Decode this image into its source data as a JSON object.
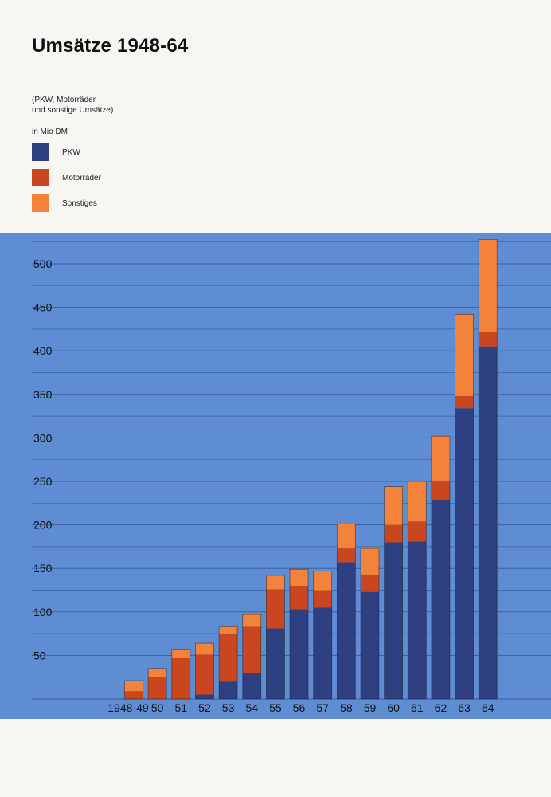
{
  "header": {
    "title": "Umsätze 1948-64",
    "subtitle_line1": "(PKW, Motorräder",
    "subtitle_line2": "und sonstige Umsätze)",
    "unit": "in Mio DM"
  },
  "legend": [
    {
      "label": "PKW",
      "color": "#2e3f82"
    },
    {
      "label": "Motorräder",
      "color": "#c9461e"
    },
    {
      "label": "Sonstiges",
      "color": "#f3823a"
    }
  ],
  "colors": {
    "panel_background": "#5f8dd4",
    "pkw": "#2e3f82",
    "motorraeder": "#c9461e",
    "sonstiges": "#f3823a",
    "gridline": "#3a5a9c"
  },
  "chart_data": {
    "type": "bar",
    "stacked": true,
    "categories": [
      "1948-49",
      "50",
      "51",
      "52",
      "53",
      "54",
      "55",
      "56",
      "57",
      "58",
      "59",
      "60",
      "61",
      "62",
      "63",
      "64"
    ],
    "series": [
      {
        "name": "PKW",
        "values": [
          0,
          0,
          0,
          5,
          20,
          30,
          81,
          103,
          105,
          157,
          123,
          180,
          181,
          229,
          334,
          405
        ]
      },
      {
        "name": "Motorräder",
        "values": [
          9,
          25,
          47,
          46,
          55,
          53,
          45,
          27,
          20,
          16,
          20,
          20,
          23,
          22,
          14,
          17
        ]
      },
      {
        "name": "Sonstiges",
        "values": [
          12,
          10,
          10,
          13,
          8,
          14,
          16,
          19,
          22,
          28,
          30,
          44,
          46,
          51,
          94,
          106
        ]
      }
    ],
    "ylim": [
      0,
      525
    ],
    "yticks": [
      50,
      100,
      150,
      200,
      250,
      300,
      350,
      400,
      450,
      500
    ],
    "grid_step": 25,
    "xlabel": "",
    "ylabel": "",
    "legend_position": "top-left"
  }
}
